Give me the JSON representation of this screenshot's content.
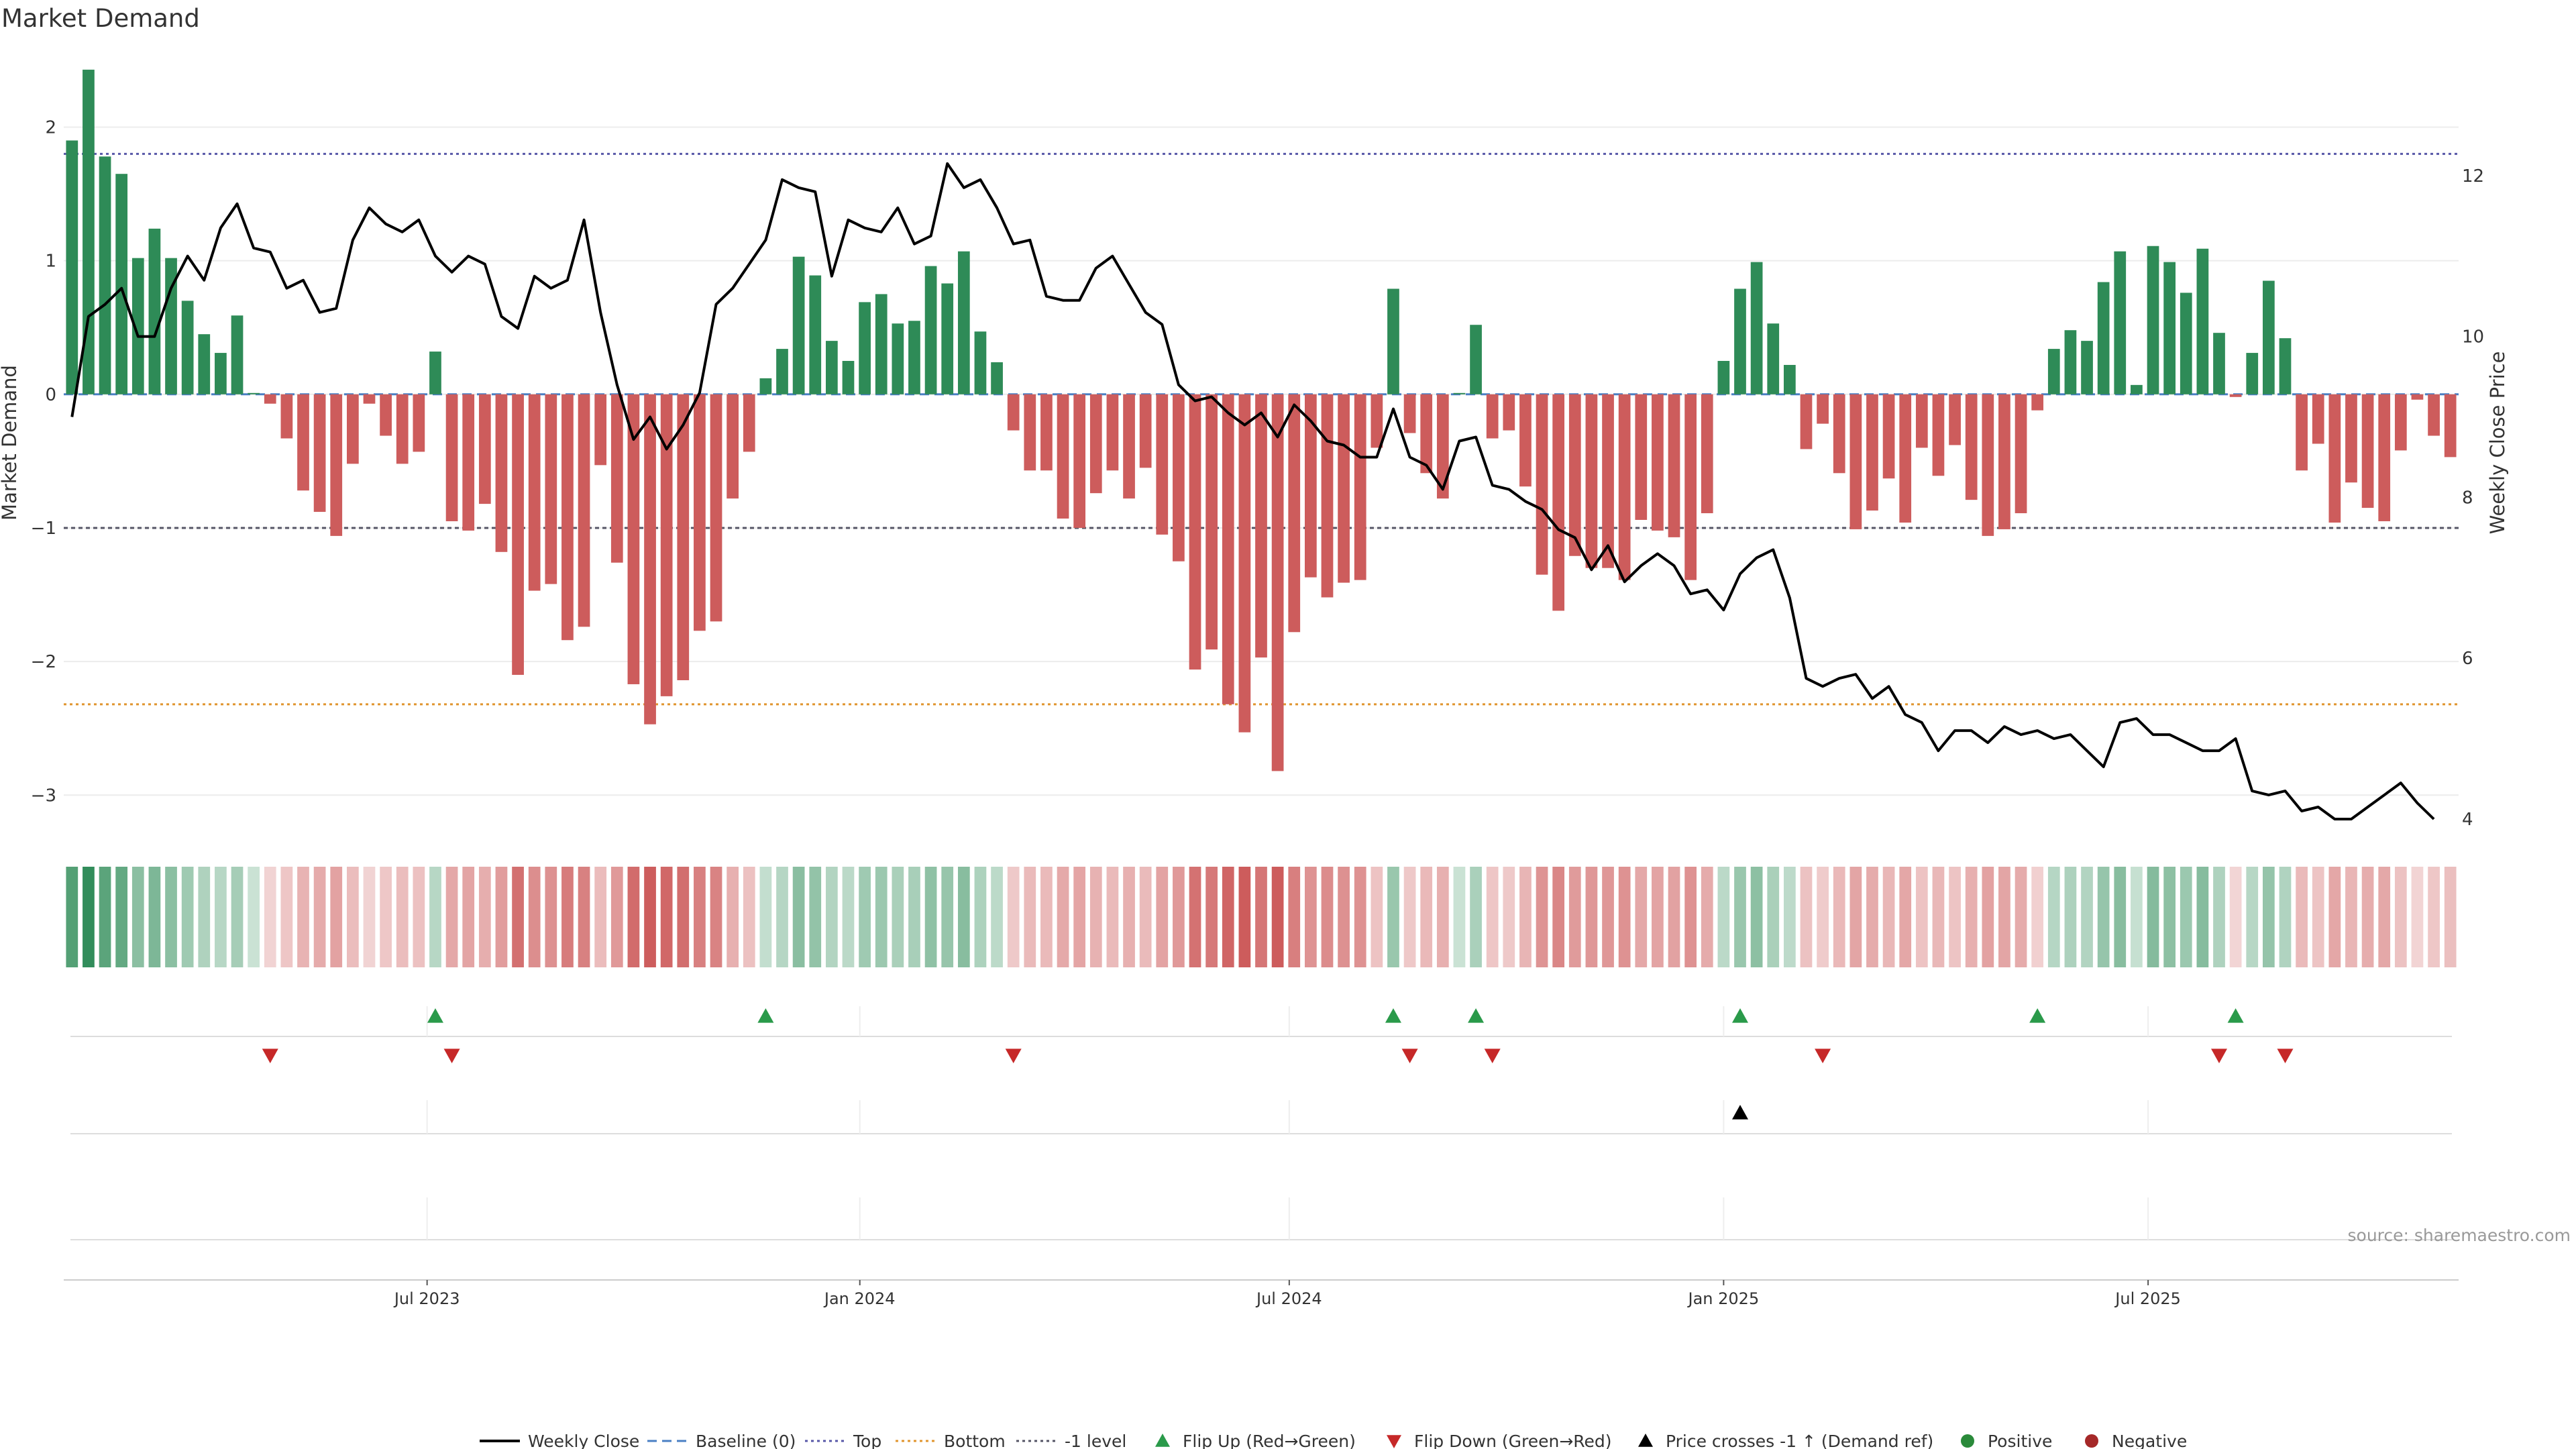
{
  "chart_data": {
    "type": "bar",
    "title": "Market Demand",
    "ylabel": "Market Demand",
    "y2label": "Weekly Close Price",
    "source": "source: sharemaestro.com",
    "ylim": [
      -3.3,
      2.6
    ],
    "y2lim": [
      3.8,
      13.6
    ],
    "yticks": [
      2,
      1,
      0,
      -1,
      -2,
      -3
    ],
    "yticklabels": [
      "2",
      "1",
      "0",
      "−1",
      "−2",
      "−3"
    ],
    "y2ticks": [
      12,
      10,
      8,
      6,
      4
    ],
    "y2ticklabels": [
      "12",
      "10",
      "8",
      "6",
      "4"
    ],
    "xticks": [
      {
        "label": "Jul 2023",
        "week": 21.5
      },
      {
        "label": "Jan 2024",
        "week": 47.7
      },
      {
        "label": "Jul 2024",
        "week": 73.7
      },
      {
        "label": "Jan 2025",
        "week": 100.0
      },
      {
        "label": "Jul 2025",
        "week": 125.7
      }
    ],
    "reference_lines": {
      "top": 1.8,
      "minus_one": -1.0,
      "bottom": -2.32,
      "baseline": 0
    },
    "demand": [
      1.9,
      2.43,
      1.78,
      1.65,
      1.02,
      1.24,
      1.02,
      0.7,
      0.45,
      0.31,
      0.59,
      0.01,
      -0.07,
      -0.33,
      -0.72,
      -0.88,
      -1.06,
      -0.52,
      -0.07,
      -0.31,
      -0.52,
      -0.43,
      0.32,
      -0.95,
      -1.02,
      -0.82,
      -1.18,
      -2.1,
      -1.47,
      -1.42,
      -1.84,
      -1.74,
      -0.53,
      -1.26,
      -2.17,
      -2.47,
      -2.26,
      -2.14,
      -1.77,
      -1.7,
      -0.78,
      -0.43,
      0.12,
      0.34,
      1.03,
      0.89,
      0.4,
      0.25,
      0.69,
      0.75,
      0.53,
      0.55,
      0.96,
      0.83,
      1.07,
      0.47,
      0.24,
      -0.27,
      -0.57,
      -0.57,
      -0.93,
      -1.0,
      -0.74,
      -0.57,
      -0.78,
      -0.55,
      -1.05,
      -1.25,
      -2.06,
      -1.91,
      -2.32,
      -2.53,
      -1.97,
      -2.82,
      -1.78,
      -1.37,
      -1.52,
      -1.41,
      -1.39,
      -0.4,
      0.79,
      -0.29,
      -0.59,
      -0.78,
      0.01,
      0.52,
      -0.33,
      -0.27,
      -0.69,
      -1.35,
      -1.62,
      -1.21,
      -1.3,
      -1.3,
      -1.39,
      -0.94,
      -1.02,
      -1.07,
      -1.39,
      -0.89,
      0.25,
      0.79,
      0.99,
      0.53,
      0.22,
      -0.41,
      -0.22,
      -0.59,
      -1.01,
      -0.87,
      -0.63,
      -0.96,
      -0.4,
      -0.61,
      -0.38,
      -0.79,
      -1.06,
      -1.01,
      -0.89,
      -0.12,
      0.34,
      0.48,
      0.4,
      0.84,
      1.07,
      0.07,
      1.11,
      0.99,
      0.76,
      1.09,
      0.46,
      -0.02,
      0.31,
      0.85,
      0.42,
      -0.57,
      -0.37,
      -0.96,
      -0.66,
      -0.85,
      -0.95,
      -0.42,
      -0.04,
      -0.31,
      -0.47
    ],
    "price": [
      9.0,
      10.25,
      10.4,
      10.6,
      10.0,
      10.0,
      10.6,
      11.0,
      10.7,
      11.35,
      11.65,
      11.1,
      11.05,
      10.6,
      10.7,
      10.3,
      10.35,
      11.2,
      11.6,
      11.4,
      11.3,
      11.45,
      11.0,
      10.8,
      11.0,
      10.9,
      10.25,
      10.1,
      10.75,
      10.6,
      10.7,
      11.45,
      10.3,
      9.4,
      8.72,
      9.0,
      8.6,
      8.9,
      9.3,
      10.4,
      10.6,
      10.9,
      11.2,
      11.95,
      11.85,
      11.8,
      10.75,
      11.45,
      11.35,
      11.3,
      11.6,
      11.15,
      11.25,
      12.15,
      11.85,
      11.95,
      11.6,
      11.15,
      11.2,
      10.5,
      10.45,
      10.45,
      10.85,
      11.0,
      10.65,
      10.3,
      10.15,
      9.4,
      9.2,
      9.25,
      9.05,
      8.9,
      9.05,
      8.75,
      9.15,
      8.95,
      8.7,
      8.65,
      8.5,
      8.5,
      9.1,
      8.5,
      8.4,
      8.1,
      8.7,
      8.75,
      8.15,
      8.1,
      7.95,
      7.85,
      7.6,
      7.5,
      7.1,
      7.4,
      6.95,
      7.15,
      7.3,
      7.15,
      6.8,
      6.85,
      6.6,
      7.05,
      7.25,
      7.35,
      6.75,
      5.75,
      5.65,
      5.75,
      5.8,
      5.5,
      5.65,
      5.3,
      5.2,
      4.85,
      5.1,
      5.1,
      4.95,
      5.15,
      5.05,
      5.1,
      5.0,
      5.05,
      4.85,
      4.65,
      5.2,
      5.25,
      5.05,
      5.05,
      4.95,
      4.85,
      4.85,
      5.0,
      4.35,
      4.3,
      4.35,
      4.1,
      4.15,
      4.0,
      4.0,
      4.15,
      4.3,
      4.45,
      4.2,
      4.0
    ],
    "flip_up_weeks": [
      22,
      42,
      80,
      85,
      101,
      119,
      131
    ],
    "flip_down_weeks": [
      12,
      23,
      57,
      81,
      86,
      106,
      130,
      134
    ],
    "price_cross_weeks": [
      101
    ]
  },
  "legend": [
    {
      "label": "Weekly Close",
      "key": "line-solid",
      "color": "#000000"
    },
    {
      "label": "Baseline (0)",
      "key": "line-dashed",
      "color": "#4a7fc4"
    },
    {
      "label": "Top",
      "key": "line-dotted",
      "color": "#5858a8"
    },
    {
      "label": "Bottom",
      "key": "line-dotted",
      "color": "#e0952e"
    },
    {
      "label": "-1 level",
      "key": "line-dotted",
      "color": "#555566"
    },
    {
      "label": "Flip Up (Red→Green)",
      "key": "triangle-up",
      "color": "#2a9a4a"
    },
    {
      "label": "Flip Down (Green→Red)",
      "key": "triangle-down",
      "color": "#c62828"
    },
    {
      "label": "Price crosses -1 ↑ (Demand ref)",
      "key": "triangle-up",
      "color": "#000000"
    },
    {
      "label": "Positive",
      "key": "circle",
      "color": "#2a8a3a"
    },
    {
      "label": "Negative",
      "key": "circle",
      "color": "#a52828"
    }
  ],
  "colors": {
    "positive": "#2e8b57",
    "negative": "#cd5c5c",
    "price": "#000000",
    "top_line": "#5858a8",
    "bottom_line": "#e0952e",
    "minus_one_line": "#555566",
    "baseline": "#4a7fc4"
  }
}
